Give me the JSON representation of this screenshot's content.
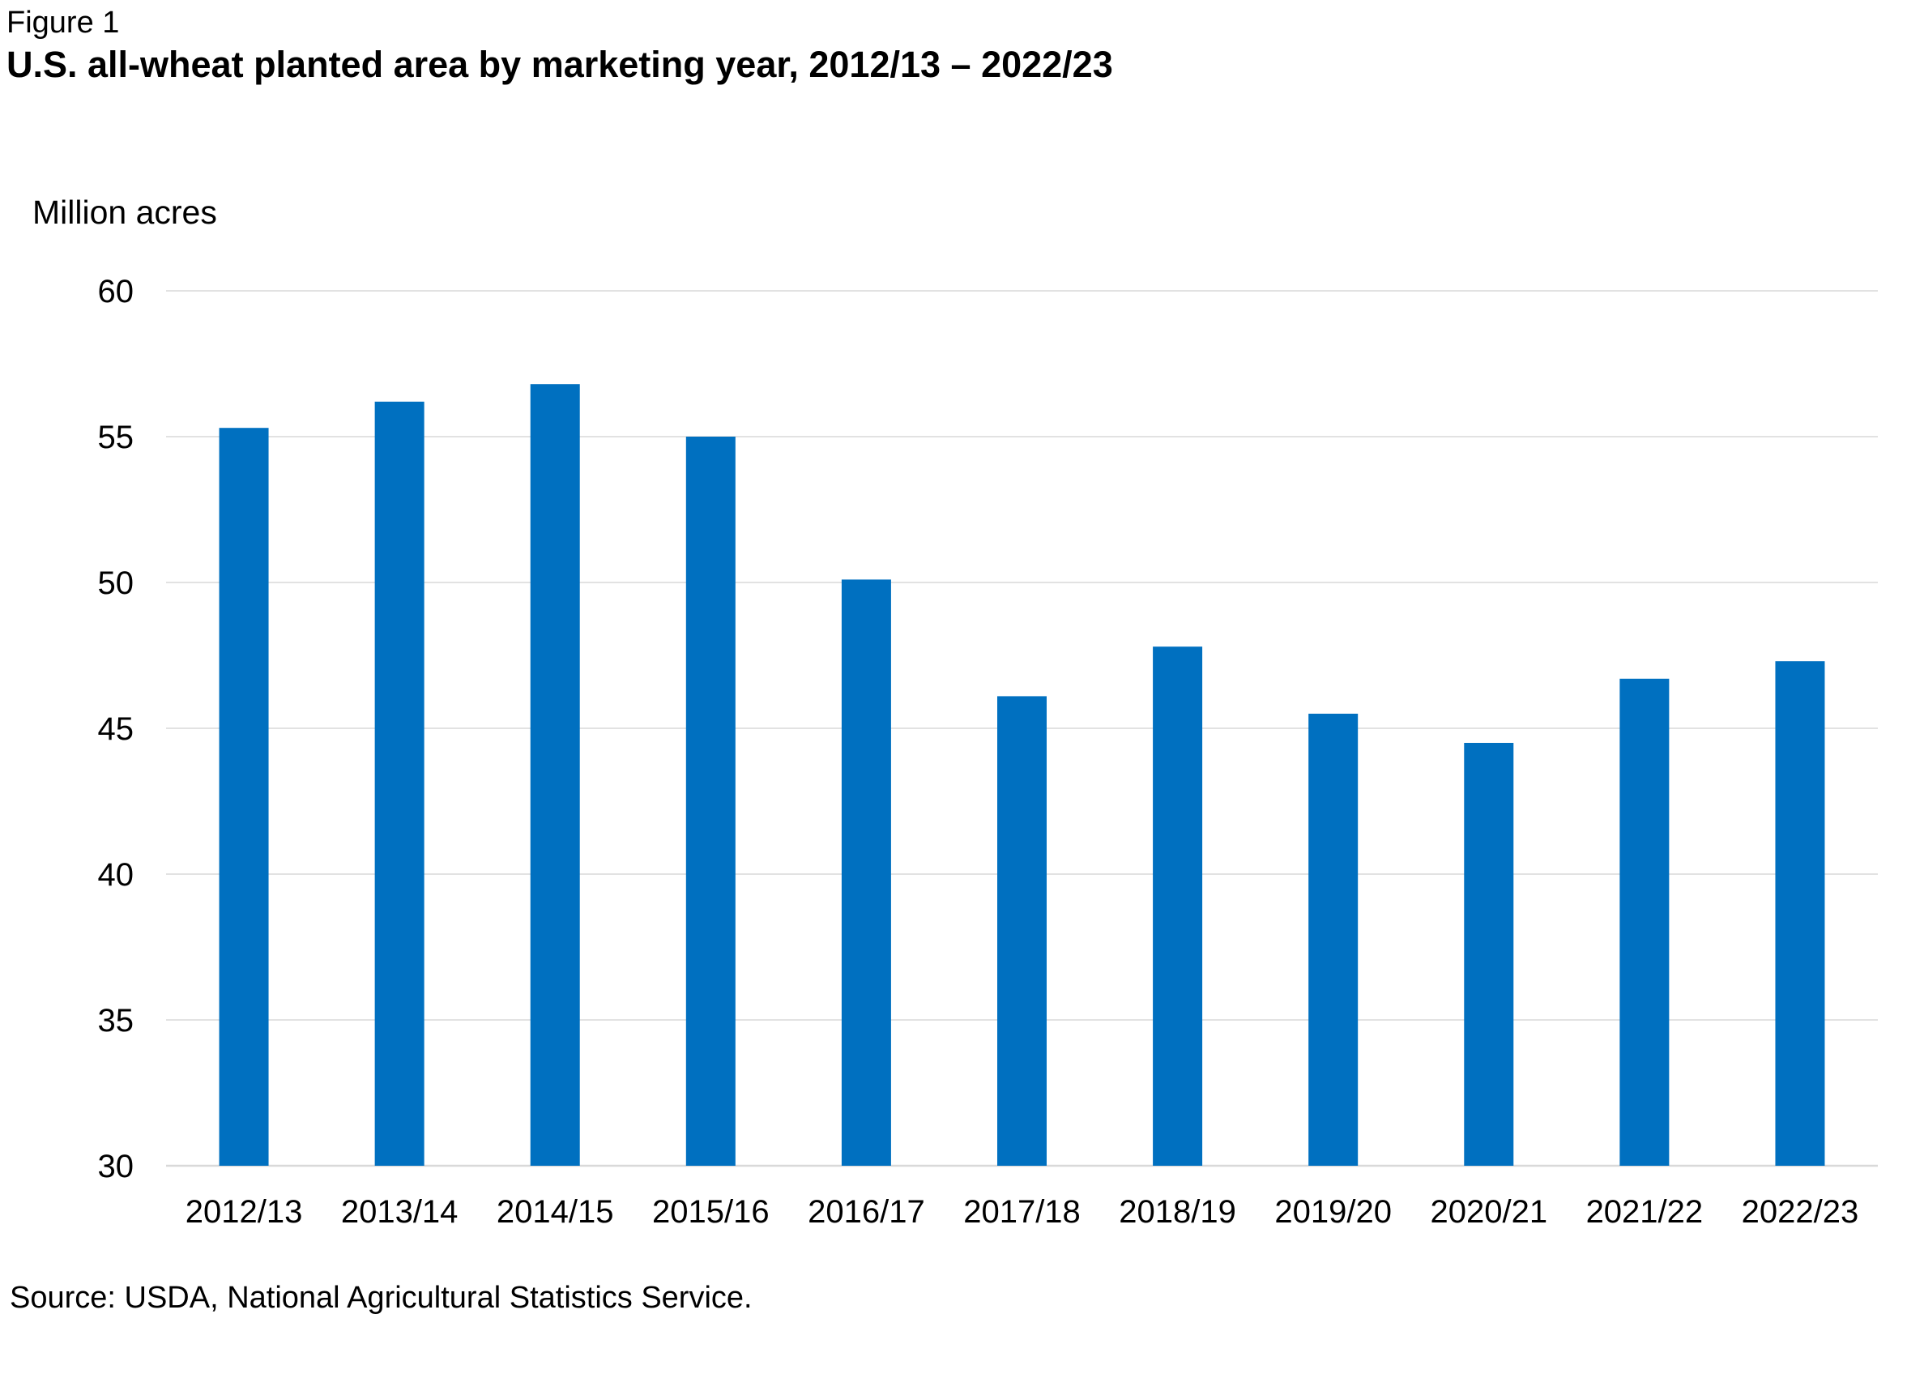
{
  "figure_label": "Figure 1",
  "title": "U.S. all-wheat planted area by marketing year, 2012/13 – 2022/23",
  "source": "Source: USDA, National Agricultural Statistics Service.",
  "colors": {
    "bar": "#0070C0",
    "grid": "#D9D9D9"
  },
  "chart_data": {
    "type": "bar",
    "ylabel": "Million acres",
    "xlabel": "",
    "ylim": [
      30,
      60
    ],
    "yticks": [
      "30",
      "35",
      "40",
      "45",
      "50",
      "55",
      "60"
    ],
    "grid": "horizontal",
    "legend": "none",
    "categories": [
      "2012/13",
      "2013/14",
      "2014/15",
      "2015/16",
      "2016/17",
      "2017/18",
      "2018/19",
      "2019/20",
      "2020/21",
      "2021/22",
      "2022/23"
    ],
    "values": [
      55.3,
      56.2,
      56.8,
      55.0,
      50.1,
      46.1,
      47.8,
      45.5,
      44.5,
      46.7,
      47.3
    ]
  }
}
